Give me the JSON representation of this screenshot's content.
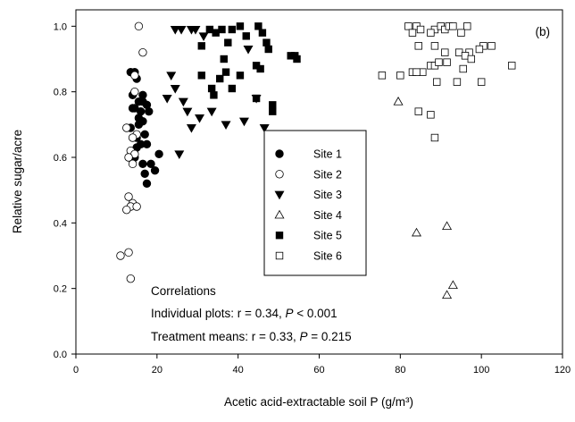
{
  "chart_data": {
    "type": "scatter",
    "panel_label": "(b)",
    "xlabel": "Acetic acid-extractable soil P (g/m³)",
    "ylabel": "Relative sugar/acre",
    "xlim": [
      0,
      120
    ],
    "ylim": [
      0.0,
      1.05
    ],
    "xticks": [
      0,
      20,
      40,
      60,
      80,
      100,
      120
    ],
    "xtick_labels": [
      "0",
      "20",
      "40",
      "60",
      "80",
      "100",
      "120"
    ],
    "yticks": [
      0.0,
      0.2,
      0.4,
      0.6,
      0.8,
      1.0
    ],
    "ytick_labels": [
      "0.0",
      "0.2",
      "0.4",
      "0.6",
      "0.8",
      "1.0"
    ],
    "grid": false,
    "legend_position": "center",
    "series": [
      {
        "name": "Site 1",
        "marker": "circle-filled",
        "points": [
          [
            13.5,
            0.86
          ],
          [
            14.5,
            0.86
          ],
          [
            15.0,
            0.84
          ],
          [
            14.0,
            0.79
          ],
          [
            16.5,
            0.79
          ],
          [
            14.5,
            0.75
          ],
          [
            15.5,
            0.77
          ],
          [
            16.5,
            0.77
          ],
          [
            16.0,
            0.74
          ],
          [
            17.5,
            0.76
          ],
          [
            14.0,
            0.75
          ],
          [
            15.5,
            0.7
          ],
          [
            16.5,
            0.71
          ],
          [
            13.5,
            0.69
          ],
          [
            17.0,
            0.67
          ],
          [
            15.0,
            0.63
          ],
          [
            16.0,
            0.64
          ],
          [
            17.5,
            0.64
          ],
          [
            14.5,
            0.6
          ],
          [
            16.5,
            0.58
          ],
          [
            18.5,
            0.58
          ],
          [
            19.5,
            0.56
          ],
          [
            17.0,
            0.55
          ],
          [
            17.5,
            0.52
          ],
          [
            20.5,
            0.61
          ],
          [
            18.0,
            0.74
          ],
          [
            15.5,
            0.72
          ],
          [
            15.0,
            0.66
          ]
        ]
      },
      {
        "name": "Site 2",
        "marker": "circle-open",
        "points": [
          [
            15.5,
            1.0
          ],
          [
            16.5,
            0.92
          ],
          [
            14.5,
            0.85
          ],
          [
            14.5,
            0.8
          ],
          [
            12.5,
            0.69
          ],
          [
            15.0,
            0.67
          ],
          [
            14.0,
            0.66
          ],
          [
            13.5,
            0.62
          ],
          [
            14.5,
            0.61
          ],
          [
            13.0,
            0.6
          ],
          [
            14.0,
            0.58
          ],
          [
            13.0,
            0.48
          ],
          [
            14.0,
            0.46
          ],
          [
            13.5,
            0.45
          ],
          [
            15.0,
            0.45
          ],
          [
            12.5,
            0.44
          ],
          [
            13.0,
            0.31
          ],
          [
            11.0,
            0.3
          ],
          [
            13.5,
            0.23
          ]
        ]
      },
      {
        "name": "Site 3",
        "marker": "triangle-down-filled",
        "points": [
          [
            24.5,
            0.99
          ],
          [
            26.0,
            0.99
          ],
          [
            28.5,
            0.99
          ],
          [
            29.5,
            0.99
          ],
          [
            23.5,
            0.85
          ],
          [
            24.5,
            0.81
          ],
          [
            22.5,
            0.78
          ],
          [
            26.5,
            0.77
          ],
          [
            27.5,
            0.74
          ],
          [
            28.5,
            0.69
          ],
          [
            30.5,
            0.72
          ],
          [
            25.5,
            0.61
          ],
          [
            33.5,
            0.74
          ],
          [
            37.0,
            0.7
          ],
          [
            41.5,
            0.71
          ],
          [
            44.5,
            0.78
          ],
          [
            42.5,
            0.93
          ],
          [
            46.5,
            0.69
          ],
          [
            31.5,
            0.97
          ]
        ]
      },
      {
        "name": "Site 4",
        "marker": "triangle-up-open",
        "points": [
          [
            79.5,
            0.77
          ],
          [
            84.0,
            0.37
          ],
          [
            91.5,
            0.39
          ],
          [
            91.5,
            0.18
          ],
          [
            93.0,
            0.21
          ]
        ]
      },
      {
        "name": "Site 5",
        "marker": "square-filled",
        "points": [
          [
            33.0,
            0.99
          ],
          [
            36.0,
            0.99
          ],
          [
            38.5,
            0.99
          ],
          [
            40.5,
            1.0
          ],
          [
            45.0,
            1.0
          ],
          [
            31.0,
            0.94
          ],
          [
            34.5,
            0.98
          ],
          [
            37.5,
            0.95
          ],
          [
            42.0,
            0.97
          ],
          [
            46.0,
            0.98
          ],
          [
            47.0,
            0.95
          ],
          [
            47.5,
            0.93
          ],
          [
            36.5,
            0.9
          ],
          [
            31.0,
            0.85
          ],
          [
            35.5,
            0.84
          ],
          [
            40.5,
            0.85
          ],
          [
            44.5,
            0.88
          ],
          [
            45.5,
            0.87
          ],
          [
            33.5,
            0.81
          ],
          [
            37.0,
            0.86
          ],
          [
            38.5,
            0.81
          ],
          [
            34.0,
            0.79
          ],
          [
            44.5,
            0.78
          ],
          [
            48.5,
            0.76
          ],
          [
            48.5,
            0.74
          ],
          [
            53.0,
            0.91
          ],
          [
            54.0,
            0.91
          ],
          [
            54.5,
            0.9
          ]
        ]
      },
      {
        "name": "Site 6",
        "marker": "square-open",
        "points": [
          [
            82.0,
            1.0
          ],
          [
            84.0,
            1.0
          ],
          [
            85.0,
            0.99
          ],
          [
            88.5,
            0.99
          ],
          [
            90.0,
            1.0
          ],
          [
            91.0,
            0.99
          ],
          [
            92.0,
            1.0
          ],
          [
            93.0,
            1.0
          ],
          [
            96.5,
            1.0
          ],
          [
            95.0,
            0.98
          ],
          [
            87.5,
            0.98
          ],
          [
            83.0,
            0.98
          ],
          [
            84.5,
            0.94
          ],
          [
            88.5,
            0.94
          ],
          [
            91.0,
            0.92
          ],
          [
            94.5,
            0.92
          ],
          [
            97.0,
            0.92
          ],
          [
            100.5,
            0.94
          ],
          [
            102.5,
            0.94
          ],
          [
            99.5,
            0.93
          ],
          [
            96.0,
            0.91
          ],
          [
            97.5,
            0.9
          ],
          [
            83.0,
            0.86
          ],
          [
            80.0,
            0.85
          ],
          [
            85.5,
            0.86
          ],
          [
            84.0,
            0.86
          ],
          [
            75.5,
            0.85
          ],
          [
            87.5,
            0.88
          ],
          [
            88.5,
            0.88
          ],
          [
            89.5,
            0.89
          ],
          [
            91.5,
            0.89
          ],
          [
            95.5,
            0.87
          ],
          [
            89.0,
            0.83
          ],
          [
            100.0,
            0.83
          ],
          [
            107.5,
            0.88
          ],
          [
            84.5,
            0.74
          ],
          [
            87.5,
            0.73
          ],
          [
            88.5,
            0.66
          ],
          [
            94.0,
            0.83
          ]
        ]
      }
    ],
    "annotations": {
      "line1": "Correlations",
      "line2_prefix": "Individual plots: r = 0.34, ",
      "line2_p": "P",
      "line2_suffix": " < 0.001",
      "line3_prefix": "Treatment means: r = 0.33, ",
      "line3_p": "P",
      "line3_suffix": " = 0.215"
    }
  }
}
